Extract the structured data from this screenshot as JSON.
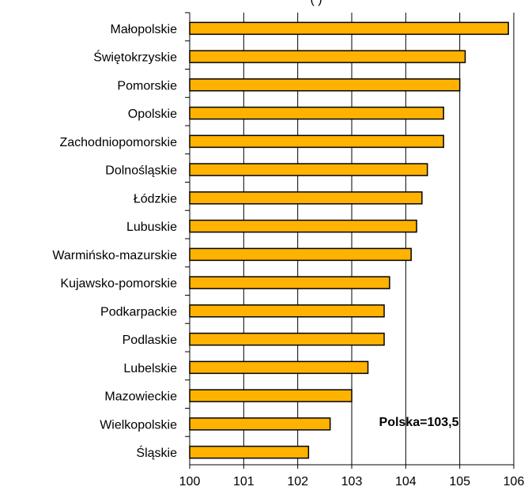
{
  "chart_data": {
    "type": "bar",
    "orientation": "horizontal",
    "title_fragment": "(           )",
    "categories": [
      "Małopolskie",
      "Świętokrzyskie",
      "Pomorskie",
      "Opolskie",
      "Zachodniopomorskie",
      "Dolnośląskie",
      "Łódzkie",
      "Lubuskie",
      "Warmińsko-mazurskie",
      "Kujawsko-pomorskie",
      "Podkarpackie",
      "Podlaskie",
      "Lubelskie",
      "Mazowieckie",
      "Wielkopolskie",
      "Śląskie"
    ],
    "values": [
      105.9,
      105.1,
      105.0,
      104.7,
      104.7,
      104.4,
      104.3,
      104.2,
      104.1,
      103.7,
      103.6,
      103.6,
      103.3,
      103.0,
      102.6,
      102.2
    ],
    "xlim": [
      100,
      106
    ],
    "xticks": [
      "100",
      "101",
      "102",
      "103",
      "104",
      "105",
      "106"
    ],
    "annotation": "Polska=103,5",
    "grid": true,
    "bar_color": "#FFB300",
    "bar_edge_color": "#000000",
    "grid_color": "#000000"
  }
}
